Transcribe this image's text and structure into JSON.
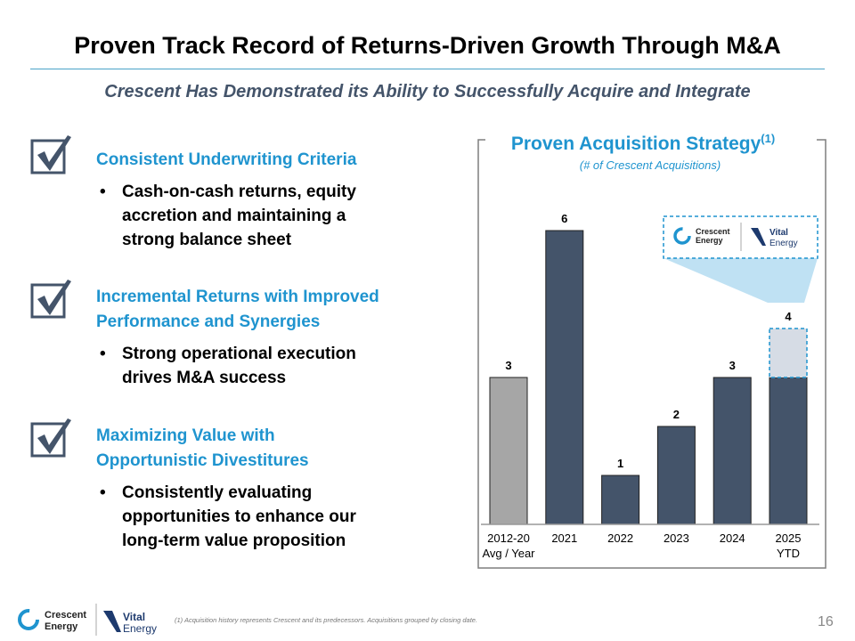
{
  "title": "Proven Track Record of Returns-Driven Growth Through M&A",
  "subtitle": "Crescent Has Demonstrated its Ability to Successfully Acquire and Integrate",
  "sections": [
    {
      "heading": [
        "Consistent Underwriting Criteria"
      ],
      "bullet": [
        "Cash-on-cash returns, equity",
        "accretion and maintaining a",
        "strong balance sheet"
      ]
    },
    {
      "heading": [
        "Incremental Returns with Improved",
        "Performance and Synergies"
      ],
      "bullet": [
        "Strong operational execution",
        "drives M&A success"
      ]
    },
    {
      "heading": [
        "Maximizing Value with",
        "Opportunistic Divestitures"
      ],
      "bullet": [
        "Consistently evaluating",
        "opportunities to enhance our",
        "long-term value proposition"
      ]
    }
  ],
  "bullet_char": "•",
  "chart_data": {
    "type": "bar",
    "title": "Proven Acquisition Strategy",
    "title_superscript": "(1)",
    "subtitle": "(# of Crescent Acquisitions)",
    "categories": [
      [
        "2012-20",
        "Avg / Year"
      ],
      [
        "2021"
      ],
      [
        "2022"
      ],
      [
        "2023"
      ],
      [
        "2024"
      ],
      [
        "2025",
        "YTD"
      ]
    ],
    "values": [
      3,
      6,
      1,
      2,
      3,
      4
    ],
    "solid_values": [
      3,
      6,
      1,
      2,
      3,
      3
    ],
    "highlight": {
      "category_index": 5,
      "increment": 1,
      "label": "Crescent Energy + Vital Energy"
    },
    "colors": [
      "#a6a6a6",
      "#44546a",
      "#44546a",
      "#44546a",
      "#44546a",
      "#44546a"
    ],
    "highlight_color": "#d6dce5",
    "ylim": [
      0,
      6
    ],
    "grid": false
  },
  "logos": {
    "crescent": [
      "Crescent",
      "Energy"
    ],
    "vital": [
      "Vital",
      "Energy"
    ]
  },
  "colors": {
    "accent": "#1f94cf",
    "navy": "#44546a",
    "callout": "#bfe1f3"
  },
  "footnote": "(1)     Acquisition history represents Crescent and its predecessors. Acquisitions grouped by closing date.",
  "page_number": "16"
}
